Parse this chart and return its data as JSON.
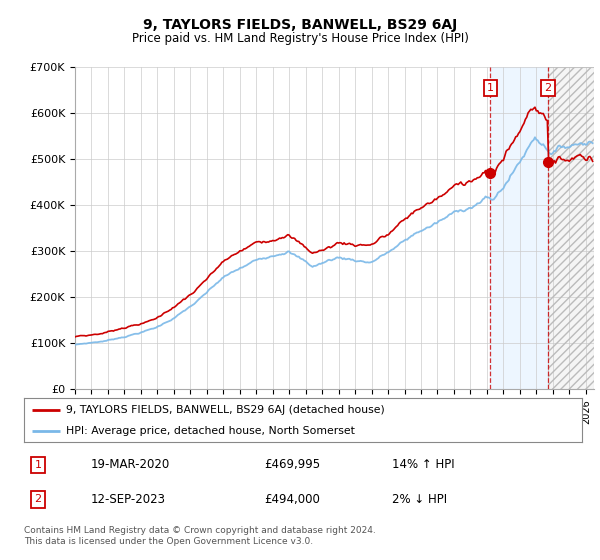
{
  "title": "9, TAYLORS FIELDS, BANWELL, BS29 6AJ",
  "subtitle": "Price paid vs. HM Land Registry's House Price Index (HPI)",
  "ylim": [
    0,
    700000
  ],
  "yticks": [
    0,
    100000,
    200000,
    300000,
    400000,
    500000,
    600000,
    700000
  ],
  "ytick_labels": [
    "£0",
    "£100K",
    "£200K",
    "£300K",
    "£400K",
    "£500K",
    "£600K",
    "£700K"
  ],
  "hpi_color": "#7ab8e8",
  "price_color": "#cc0000",
  "sale1_year": 2020.21,
  "sale2_year": 2023.71,
  "sale1_price": 469995,
  "sale2_price": 494000,
  "sale1": {
    "date": "19-MAR-2020",
    "price": 469995,
    "pct": "14%",
    "dir": "↑"
  },
  "sale2": {
    "date": "12-SEP-2023",
    "price": 494000,
    "pct": "2%",
    "dir": "↓"
  },
  "legend_label1": "9, TAYLORS FIELDS, BANWELL, BS29 6AJ (detached house)",
  "legend_label2": "HPI: Average price, detached house, North Somerset",
  "footer": "Contains HM Land Registry data © Crown copyright and database right 2024.\nThis data is licensed under the Open Government Licence v3.0.",
  "bg_color": "#ffffff",
  "grid_color": "#cccccc",
  "shade_color": "#ddeeff",
  "x_min": 1995,
  "x_max": 2026.5
}
